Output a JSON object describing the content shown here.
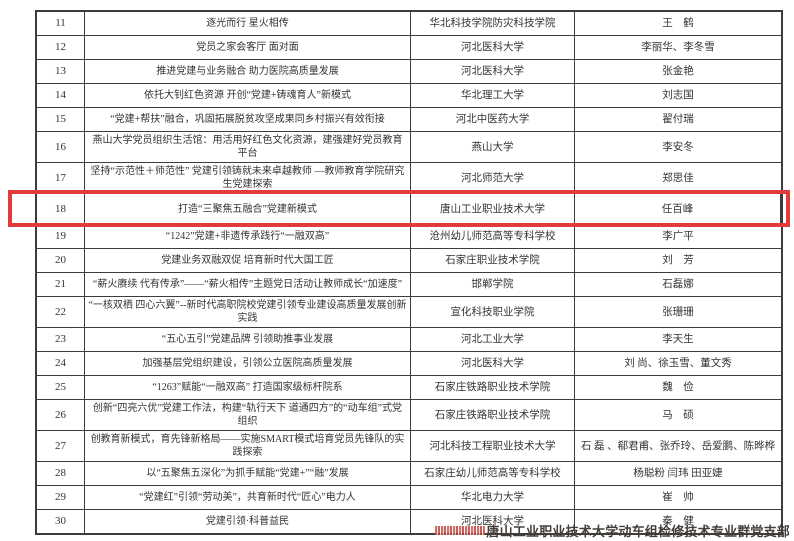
{
  "document": {
    "highlight": {
      "row_no": "18",
      "color": "#e13b3b"
    },
    "table": {
      "rows": [
        {
          "no": "11",
          "title": "逐光而行 星火相传",
          "org": "华北科技学院防灾科技学院",
          "names": "王　鹤",
          "highlighted": false
        },
        {
          "no": "12",
          "title": "党员之家会客厅 面对面",
          "org": "河北医科大学",
          "names": "李丽华、李冬雪",
          "highlighted": false
        },
        {
          "no": "13",
          "title": "推进党建与业务融合 助力医院高质量发展",
          "org": "河北医科大学",
          "names": "张金艳",
          "highlighted": false
        },
        {
          "no": "14",
          "title": "依托大钊红色资源 开创“党建+铸魂育人”新模式",
          "org": "华北理工大学",
          "names": "刘志国",
          "highlighted": false
        },
        {
          "no": "15",
          "title": "“党建+帮扶”融合，巩固拓展脱贫攻坚成果同乡村振兴有效衔接",
          "org": "河北中医药大学",
          "names": "翟付瑞",
          "highlighted": false
        },
        {
          "no": "16",
          "title": "燕山大学党员组织生活馆：用活用好红色文化资源，建强建好党员教育平台",
          "org": "燕山大学",
          "names": "李安冬",
          "highlighted": false
        },
        {
          "no": "17",
          "title": "坚持“示范性＋师范性” 党建引领铸就未来卓越教师 —教师教育学院研究生党建探索",
          "org": "河北师范大学",
          "names": "郑思佳",
          "highlighted": false
        },
        {
          "no": "18",
          "title": "打造“三聚焦五融合”党建新模式",
          "org": "唐山工业职业技术大学",
          "names": "任百峰",
          "highlighted": true
        },
        {
          "no": "19",
          "title": "“1242”党建+非遗传承践行“一融双高”",
          "org": "沧州幼儿师范高等专科学校",
          "names": "李广平",
          "highlighted": false
        },
        {
          "no": "20",
          "title": "党建业务双融双促 培育新时代大国工匠",
          "org": "石家庄职业技术学院",
          "names": "刘　芳",
          "highlighted": false
        },
        {
          "no": "21",
          "title": "“薪火赓续 代有传承”——“薪火相传”主题党日活动让教师成长“加速度”",
          "org": "邯郸学院",
          "names": "石磊娜",
          "highlighted": false
        },
        {
          "no": "22",
          "title": "“一核双栖 四心六翼”--新时代高职院校党建引领专业建设高质量发展创新实践",
          "org": "宣化科技职业学院",
          "names": "张珊珊",
          "highlighted": false
        },
        {
          "no": "23",
          "title": "“五心五引”党建品牌 引领助推事业发展",
          "org": "河北工业大学",
          "names": "李天生",
          "highlighted": false
        },
        {
          "no": "24",
          "title": "加强基层党组织建设，引领公立医院高质量发展",
          "org": "河北医科大学",
          "names": "刘 尚、徐玉雪、董文秀",
          "highlighted": false
        },
        {
          "no": "25",
          "title": "“1263”赋能“一融双高”  打造国家级标杆院系",
          "org": "石家庄铁路职业技术学院",
          "names": "魏　俭",
          "highlighted": false
        },
        {
          "no": "26",
          "title": "创新“四亮六优”党建工作法，构建“轨行天下 道通四方”的“动车组”式党组织",
          "org": "石家庄铁路职业技术学院",
          "names": "马　硕",
          "highlighted": false
        },
        {
          "no": "27",
          "title": "创教育新模式，育先锋新格局——实施SMART模式培育党员先锋队的实践探索",
          "org": "河北科技工程职业技术大学",
          "names": "石 磊 、郗君甫、张乔玲、岳爱鹏、陈晔桦",
          "highlighted": false
        },
        {
          "no": "28",
          "title": "以“五聚焦五深化”为抓手赋能“党建+”“融”发展",
          "org": "石家庄幼儿师范高等专科学校",
          "names": "杨聪粉 闫玮 田亚婕",
          "highlighted": false
        },
        {
          "no": "29",
          "title": "“党建红”引领“劳动美”，共育新时代“匠心”电力人",
          "org": "华北电力大学",
          "names": "崔　帅",
          "highlighted": false
        },
        {
          "no": "30",
          "title": "党建引领·科普益民",
          "org": "河北医科大学",
          "names": "秦　健",
          "highlighted": false
        }
      ]
    },
    "footer": {
      "watermark": "唐山工业职业技术大学动车组检修技术专业群党支部"
    }
  }
}
